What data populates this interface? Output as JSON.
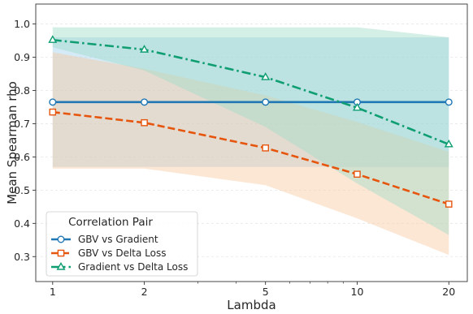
{
  "chart_data": {
    "type": "line",
    "xlabel": "Lambda",
    "ylabel": "Mean Spearman rho",
    "x_scale": "log",
    "xlim": [
      0.88,
      23
    ],
    "ylim": [
      0.225,
      1.06
    ],
    "x": [
      1,
      2,
      5,
      10,
      20
    ],
    "x_tick_labels": [
      "1",
      "2",
      "5",
      "10",
      "20"
    ],
    "y_ticks": [
      0.3,
      0.4,
      0.5,
      0.6,
      0.7,
      0.8,
      0.9,
      1.0
    ],
    "y_tick_labels": [
      "0.3",
      "0.4",
      "0.5",
      "0.6",
      "0.7",
      "0.8",
      "0.9",
      "1.0"
    ],
    "grid": true,
    "legend": {
      "title": "Correlation Pair",
      "placement": "bottom-left"
    },
    "series": [
      {
        "name": "GBV vs Gradient",
        "values": [
          0.765,
          0.765,
          0.765,
          0.765,
          0.765
        ],
        "band_low": [
          0.57,
          0.57,
          0.57,
          0.57,
          0.57
        ],
        "band_high": [
          0.96,
          0.96,
          0.96,
          0.96,
          0.96
        ],
        "color": "#1f77b4",
        "band_color": "#9fd0ec",
        "marker": "circle",
        "dash": "solid"
      },
      {
        "name": "GBV vs Delta Loss",
        "values": [
          0.735,
          0.703,
          0.627,
          0.548,
          0.458
        ],
        "band_low": [
          0.565,
          0.565,
          0.515,
          0.415,
          0.305
        ],
        "band_high": [
          0.915,
          0.865,
          0.785,
          0.705,
          0.615
        ],
        "color": "#e6550d",
        "band_color": "#f8caa2",
        "marker": "square",
        "dash": "dashed"
      },
      {
        "name": "Gradient vs Delta Loss",
        "values": [
          0.952,
          0.923,
          0.84,
          0.748,
          0.638
        ],
        "band_low": [
          0.93,
          0.86,
          0.69,
          0.52,
          0.365
        ],
        "band_high": [
          0.99,
          0.99,
          0.99,
          0.99,
          0.96
        ],
        "color": "#0e9e72",
        "band_color": "#a0dbc8",
        "marker": "triangle",
        "dash": "dashdot"
      }
    ]
  }
}
